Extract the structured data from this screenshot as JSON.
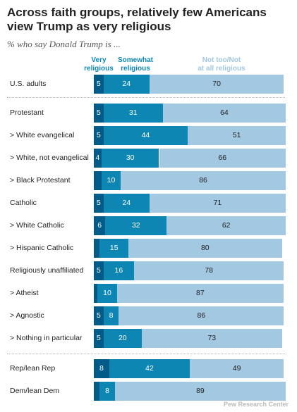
{
  "title": "Across faith groups, relatively few Americans view Trump as very religious",
  "subtitle": "% who say Donald Trump is ...",
  "colors": {
    "very": "#005B88",
    "somewhat": "#0E86B4",
    "not": "#A2C8E2",
    "very_label": "#0E86B4",
    "somewhat_label": "#0E86B4",
    "not_label": "#A2C8E2"
  },
  "chart_data": {
    "type": "bar",
    "stacked": true,
    "orientation": "horizontal",
    "xlim": [
      0,
      100
    ],
    "legend_placement": "top",
    "categories": [
      "U.S. adults",
      "Protestant",
      "> White evangelical",
      "> White, not evangelical",
      "> Black Protestant",
      "Catholic",
      "> White Catholic",
      "> Hispanic Catholic",
      "Religiously unaffiliated",
      "> Atheist",
      "> Agnostic",
      "> Nothing in particular",
      "Rep/lean Rep",
      "Dem/lean Dem"
    ],
    "series": [
      {
        "name": "Very religious",
        "values": [
          5,
          5,
          5,
          4,
          4,
          5,
          6,
          3,
          5,
          2,
          5,
          5,
          8,
          3
        ],
        "labels": [
          "5",
          "5",
          "5",
          "4",
          "",
          "5",
          "6",
          "",
          "5",
          "",
          "5",
          "5",
          "8",
          ""
        ]
      },
      {
        "name": "Somewhat religious",
        "values": [
          24,
          31,
          44,
          30,
          10,
          24,
          32,
          15,
          16,
          10,
          8,
          20,
          42,
          8
        ],
        "labels": [
          "24",
          "31",
          "44",
          "30",
          "10",
          "24",
          "32",
          "15",
          "16",
          "10",
          "8",
          "20",
          "42",
          "8"
        ]
      },
      {
        "name": "Not too/Not at all religious",
        "values": [
          70,
          64,
          51,
          66,
          86,
          71,
          62,
          80,
          78,
          87,
          86,
          73,
          49,
          89
        ],
        "labels": [
          "70",
          "64",
          "51",
          "66",
          "86",
          "71",
          "62",
          "80",
          "78",
          "87",
          "86",
          "73",
          "49",
          "89"
        ]
      }
    ]
  },
  "legend": {
    "very": "Very religious",
    "somewhat": "Somewhat religious",
    "not": "Not too/Not at all religious"
  },
  "watermark": "Pew Research Center"
}
